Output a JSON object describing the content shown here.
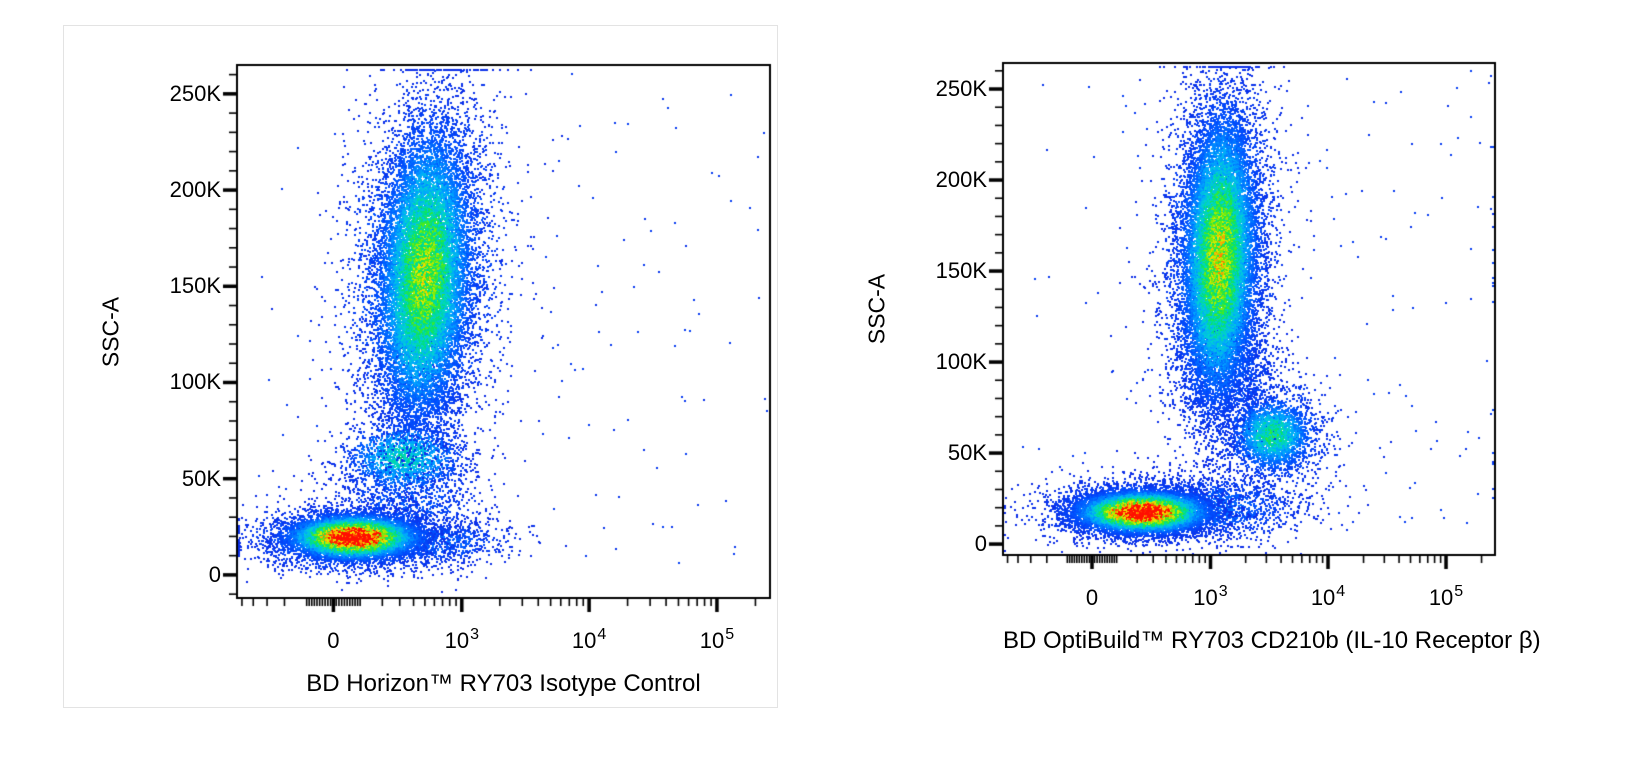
{
  "page": {
    "background": "#ffffff",
    "left_figure_border_color": "#e3e3e3",
    "frame_color": "#000000",
    "tick_color": "#000000",
    "label_color": "#000000"
  },
  "colormap": {
    "name": "flow-pseudocolor-jet",
    "stops": [
      [
        0.0,
        [
          20,
          20,
          215
        ]
      ],
      [
        0.13,
        [
          0,
          80,
          255
        ]
      ],
      [
        0.28,
        [
          0,
          165,
          255
        ]
      ],
      [
        0.4,
        [
          0,
          210,
          210
        ]
      ],
      [
        0.52,
        [
          0,
          225,
          115
        ]
      ],
      [
        0.62,
        [
          70,
          235,
          30
        ]
      ],
      [
        0.72,
        [
          175,
          235,
          0
        ]
      ],
      [
        0.8,
        [
          240,
          230,
          0
        ]
      ],
      [
        0.88,
        [
          255,
          155,
          0
        ]
      ],
      [
        1.0,
        [
          255,
          15,
          0
        ]
      ]
    ]
  },
  "chart_data": [
    {
      "type": "scatter",
      "variant": "flow-cytometry-pseudocolor-density",
      "title": "",
      "xlabel": "BD Horizon™ RY703 Isotype Control",
      "ylabel": "SSC-A",
      "grid": false,
      "legend": null,
      "x_scale": {
        "type": "asinh",
        "cofactor": 200,
        "min": -550,
        "max": 260000
      },
      "y_scale": {
        "type": "linear",
        "min": -12000,
        "max": 265000
      },
      "x_ticks": {
        "major": [
          {
            "value": 0,
            "base": "0",
            "sup": ""
          },
          {
            "value": 1000,
            "base": "10",
            "sup": "3"
          },
          {
            "value": 10000,
            "base": "10",
            "sup": "4"
          },
          {
            "value": 100000,
            "base": "10",
            "sup": "5"
          }
        ],
        "minor": [
          -500,
          -400,
          -300,
          -200,
          -100,
          -90,
          -80,
          -70,
          -60,
          -50,
          -40,
          -30,
          -20,
          -10,
          10,
          20,
          30,
          40,
          50,
          60,
          70,
          80,
          90,
          100,
          200,
          300,
          400,
          500,
          600,
          700,
          800,
          900,
          2000,
          3000,
          4000,
          5000,
          6000,
          7000,
          8000,
          9000,
          20000,
          30000,
          40000,
          50000,
          60000,
          70000,
          80000,
          90000,
          200000
        ]
      },
      "y_ticks": {
        "major": [
          {
            "value": 0,
            "label": "0"
          },
          {
            "value": 50000,
            "label": "50K"
          },
          {
            "value": 100000,
            "label": "100K"
          },
          {
            "value": 150000,
            "label": "150K"
          },
          {
            "value": 200000,
            "label": "200K"
          },
          {
            "value": 250000,
            "label": "250K"
          }
        ],
        "minor_step": 10000
      },
      "seed": 101,
      "populations": [
        {
          "name": "scatter-left-speckle",
          "kind": "uniform",
          "n": 60,
          "x_range": [
            -400,
            1000
          ],
          "y_range": [
            0,
            262000
          ],
          "peak": 0.04
        },
        {
          "name": "scatter-right-outliers",
          "kind": "uniform",
          "n": 80,
          "x_range": [
            3500,
            260000
          ],
          "y_range": [
            5000,
            262000
          ],
          "peak": 0.04
        },
        {
          "name": "bridge-lymph-mono",
          "kind": "gaussian",
          "n": 800,
          "x_center": 350,
          "x_sigma": 0.075,
          "y_center": 38000,
          "y_sigma": 13000,
          "rho": 0,
          "peak": 0.11
        },
        {
          "name": "bridge-mono-gran",
          "kind": "gaussian",
          "n": 550,
          "x_center": 450,
          "x_sigma": 0.05,
          "y_center": 92000,
          "y_sigma": 16000,
          "rho": 0,
          "peak": 0.1
        },
        {
          "name": "lymphocyte-tail",
          "kind": "gaussian",
          "n": 650,
          "x_center": 600,
          "x_sigma": 0.075,
          "y_center": 17000,
          "y_sigma": 6000,
          "rho": 0,
          "peak": 0.14
        },
        {
          "name": "granulocyte-halo",
          "kind": "gaussian",
          "n": 3200,
          "x_center": 500,
          "x_sigma": 0.075,
          "y_center": 158000,
          "y_sigma": 50000,
          "rho": 0.15,
          "peak": 0.24
        },
        {
          "name": "lymphocyte-halo",
          "kind": "gaussian",
          "n": 2600,
          "x_center": 85,
          "x_sigma": 0.095,
          "y_center": 19000,
          "y_sigma": 8200,
          "rho": 0,
          "peak": 0.28
        },
        {
          "name": "monocytes",
          "kind": "gaussian",
          "n": 1500,
          "x_center": 330,
          "x_sigma": 0.052,
          "y_center": 61000,
          "y_sigma": 9000,
          "rho": 0,
          "peak": 0.42
        },
        {
          "name": "granulocytes",
          "kind": "gaussian",
          "n": 14000,
          "x_center": 500,
          "x_sigma": 0.042,
          "y_center": 156000,
          "y_sigma": 36000,
          "rho": 0.15,
          "peak": 0.72
        },
        {
          "name": "lymphocytes",
          "kind": "gaussian",
          "n": 9500,
          "x_center": 75,
          "x_sigma": 0.055,
          "y_center": 19500,
          "y_sigma": 5200,
          "rho": 0,
          "peak": 1.35
        }
      ]
    },
    {
      "type": "scatter",
      "variant": "flow-cytometry-pseudocolor-density",
      "title": "",
      "xlabel": "BD OptiBuild™ RY703 CD210b (IL-10 Receptor β)",
      "ylabel": "SSC-A",
      "grid": false,
      "legend": null,
      "x_scale": {
        "type": "asinh",
        "cofactor": 200,
        "min": -550,
        "max": 260000
      },
      "y_scale": {
        "type": "linear",
        "min": -6000,
        "max": 264300
      },
      "x_ticks": {
        "major": [
          {
            "value": 0,
            "base": "0",
            "sup": ""
          },
          {
            "value": 1000,
            "base": "10",
            "sup": "3"
          },
          {
            "value": 10000,
            "base": "10",
            "sup": "4"
          },
          {
            "value": 100000,
            "base": "10",
            "sup": "5"
          }
        ],
        "minor": [
          -500,
          -400,
          -300,
          -200,
          -100,
          -90,
          -80,
          -70,
          -60,
          -50,
          -40,
          -30,
          -20,
          -10,
          10,
          20,
          30,
          40,
          50,
          60,
          70,
          80,
          90,
          100,
          200,
          300,
          400,
          500,
          600,
          700,
          800,
          900,
          2000,
          3000,
          4000,
          5000,
          6000,
          7000,
          8000,
          9000,
          20000,
          30000,
          40000,
          50000,
          60000,
          70000,
          80000,
          90000,
          200000
        ]
      },
      "y_ticks": {
        "major": [
          {
            "value": 0,
            "label": "0"
          },
          {
            "value": 50000,
            "label": "50K"
          },
          {
            "value": 100000,
            "label": "100K"
          },
          {
            "value": 150000,
            "label": "150K"
          },
          {
            "value": 200000,
            "label": "200K"
          },
          {
            "value": 250000,
            "label": "250K"
          }
        ],
        "minor_step": 10000
      },
      "seed": 202,
      "populations": [
        {
          "name": "scatter-left-speckle",
          "kind": "uniform",
          "n": 50,
          "x_range": [
            -400,
            1000
          ],
          "y_range": [
            0,
            262000
          ],
          "peak": 0.04
        },
        {
          "name": "scatter-right-outliers",
          "kind": "uniform",
          "n": 90,
          "x_range": [
            6000,
            260000
          ],
          "y_range": [
            5000,
            262000
          ],
          "peak": 0.04
        },
        {
          "name": "right-edge-pileup",
          "kind": "uniform",
          "n": 14,
          "x_range": [
            258000,
            260000
          ],
          "y_range": [
            20000,
            240000
          ],
          "peak": 0.05
        },
        {
          "name": "bridge-gran-mono",
          "kind": "gaussian",
          "n": 1100,
          "x_center": 1500,
          "x_sigma": 0.05,
          "y_center": 95000,
          "y_sigma": 18000,
          "rho": 0,
          "peak": 0.12
        },
        {
          "name": "lymphocyte-tail",
          "kind": "gaussian",
          "n": 1700,
          "x_center": 900,
          "x_sigma": 0.1,
          "y_center": 20000,
          "y_sigma": 9000,
          "rho": 0,
          "peak": 0.15
        },
        {
          "name": "granulocyte-halo",
          "kind": "gaussian",
          "n": 3200,
          "x_center": 1200,
          "x_sigma": 0.06,
          "y_center": 160000,
          "y_sigma": 50000,
          "rho": 0.1,
          "peak": 0.24
        },
        {
          "name": "lymphocyte-halo",
          "kind": "gaussian",
          "n": 2600,
          "x_center": 200,
          "x_sigma": 0.09,
          "y_center": 18000,
          "y_sigma": 8000,
          "rho": 0,
          "peak": 0.28
        },
        {
          "name": "monocyte-halo",
          "kind": "gaussian",
          "n": 700,
          "x_center": 3400,
          "x_sigma": 0.065,
          "y_center": 60000,
          "y_sigma": 16000,
          "rho": 0,
          "peak": 0.2
        },
        {
          "name": "monocytes",
          "kind": "gaussian",
          "n": 2100,
          "x_center": 3400,
          "x_sigma": 0.038,
          "y_center": 60000,
          "y_sigma": 9500,
          "rho": 0,
          "peak": 0.52
        },
        {
          "name": "granulocytes",
          "kind": "gaussian",
          "n": 14500,
          "x_center": 1200,
          "x_sigma": 0.036,
          "y_center": 158000,
          "y_sigma": 37000,
          "rho": 0.1,
          "peak": 0.78
        },
        {
          "name": "lymphocytes",
          "kind": "gaussian",
          "n": 9500,
          "x_center": 230,
          "x_sigma": 0.06,
          "y_center": 17500,
          "y_sigma": 5200,
          "rho": 0,
          "peak": 1.35
        }
      ]
    }
  ]
}
